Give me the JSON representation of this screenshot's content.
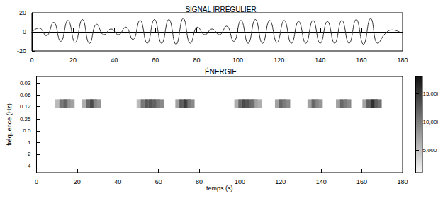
{
  "chart_data": [
    {
      "type": "line",
      "title": "SIGNAL IRRÉGULIER",
      "color": "#333333",
      "x": [
        0,
        3.5,
        7,
        10.5,
        14,
        17.5,
        21,
        24.5,
        28,
        31.5,
        35,
        38.5,
        42,
        45.5,
        49,
        52.5,
        56,
        59.5,
        63,
        66.5,
        70,
        73.5,
        77,
        80.5,
        84,
        87.5,
        91,
        94.5,
        98,
        101.5,
        105,
        108.5,
        112,
        115.5,
        119,
        122.5,
        126,
        129.5,
        133,
        136.5,
        140,
        143.5,
        147,
        150.5,
        154,
        157.5,
        161,
        164.5,
        168,
        171.5,
        175,
        178.5
      ],
      "values": [
        0,
        4,
        -4,
        10,
        -10,
        12,
        -11,
        13,
        -12,
        8,
        -3,
        3,
        -3,
        5,
        -8,
        12,
        -12,
        13,
        -12,
        13,
        -13,
        14,
        -12,
        5,
        -3,
        3,
        -3,
        6,
        -10,
        12,
        -12,
        13,
        -12,
        12,
        -11,
        12,
        -12,
        11,
        -12,
        12,
        -12,
        11,
        -12,
        12,
        -12,
        13,
        -13,
        14,
        -12,
        -2,
        2,
        0
      ],
      "xlim": [
        0,
        180
      ],
      "xticks": [
        0,
        20,
        40,
        60,
        80,
        100,
        120,
        140,
        160,
        180
      ],
      "ylim": [
        -20,
        20
      ],
      "yticks": [
        -20,
        0,
        20
      ],
      "grid": false
    },
    {
      "type": "heatmap",
      "title": "ÉNERGIE",
      "xlabel": "temps (s)",
      "ylabel": "fréquence (Hz)",
      "log": "y",
      "cells": [
        [
          11,
          0.1,
          6000
        ],
        [
          13,
          0.1,
          11000
        ],
        [
          15,
          0.1,
          12000
        ],
        [
          17,
          0.1,
          8000
        ],
        [
          24,
          0.1,
          7000
        ],
        [
          26,
          0.1,
          12000
        ],
        [
          28,
          0.1,
          14000
        ],
        [
          30,
          0.1,
          9000
        ],
        [
          51,
          0.1,
          6000
        ],
        [
          53,
          0.1,
          11000
        ],
        [
          55,
          0.1,
          13000
        ],
        [
          57,
          0.1,
          13000
        ],
        [
          59,
          0.1,
          12000
        ],
        [
          61,
          0.1,
          10000
        ],
        [
          70,
          0.1,
          8000
        ],
        [
          72,
          0.1,
          13000
        ],
        [
          74,
          0.1,
          15000
        ],
        [
          76,
          0.1,
          10000
        ],
        [
          99,
          0.1,
          7000
        ],
        [
          101,
          0.1,
          12000
        ],
        [
          103,
          0.1,
          14000
        ],
        [
          105,
          0.1,
          13000
        ],
        [
          107,
          0.1,
          11000
        ],
        [
          109,
          0.1,
          7000
        ],
        [
          119,
          0.1,
          8000
        ],
        [
          121,
          0.1,
          12000
        ],
        [
          123,
          0.1,
          10000
        ],
        [
          135,
          0.1,
          8000
        ],
        [
          137,
          0.1,
          12000
        ],
        [
          139,
          0.1,
          9000
        ],
        [
          149,
          0.1,
          8000
        ],
        [
          151,
          0.1,
          12000
        ],
        [
          153,
          0.1,
          10000
        ],
        [
          162,
          0.1,
          8000
        ],
        [
          164,
          0.1,
          13000
        ],
        [
          166,
          0.1,
          16000
        ],
        [
          168,
          0.1,
          12000
        ]
      ],
      "xlim": [
        0,
        180
      ],
      "xticks": [
        0,
        20,
        40,
        60,
        80,
        100,
        120,
        140,
        160,
        180
      ],
      "ylim": [
        0.02,
        6
      ],
      "yticks": [
        0.03,
        0.06,
        0.12,
        0.25,
        0.5,
        1,
        2,
        4
      ],
      "colorbar_range": [
        1000,
        18000
      ],
      "colorbar_ticks": [
        5000,
        10000,
        15000
      ]
    }
  ]
}
